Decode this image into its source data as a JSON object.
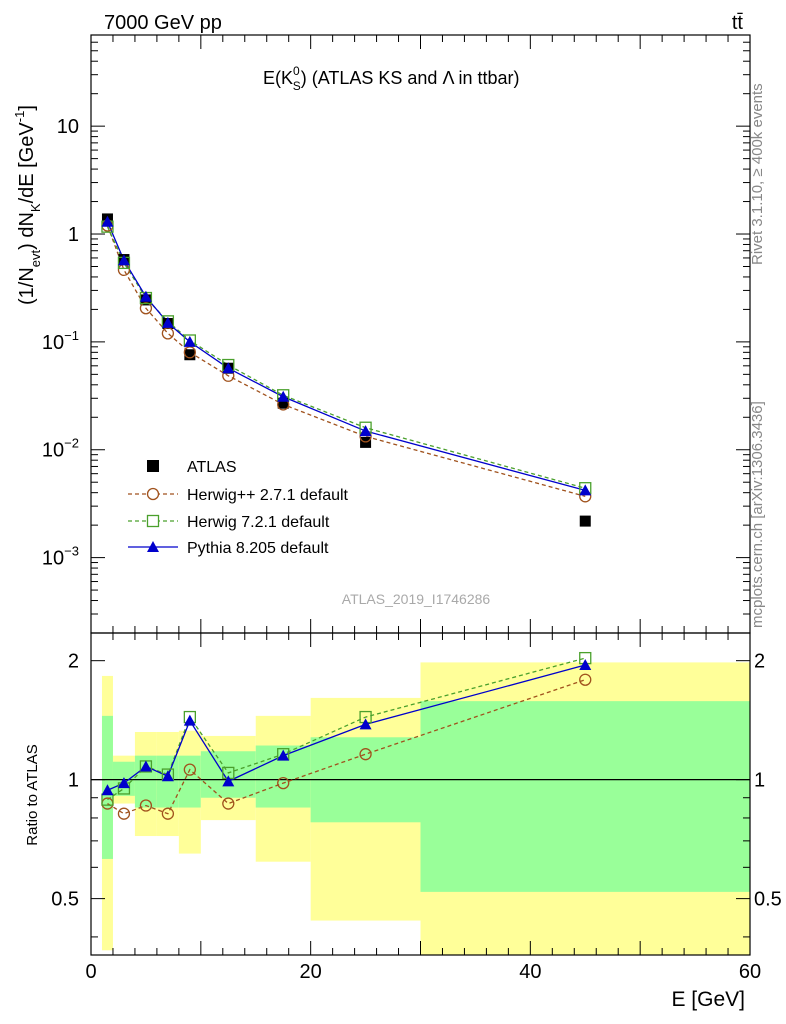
{
  "header": {
    "energy": "7000 GeV pp",
    "process": "tt̄"
  },
  "side_labels": {
    "rivet": "Rivet 3.1.10, ≥ 400k events",
    "mcplots": "mcplots.cern.ch [arXiv:1306.3436]"
  },
  "watermark": "ATLAS_2019_I1746286",
  "chart_data": [
    {
      "type": "line",
      "title": "E(K⁰S) (ATLAS KS and Λ in ttbar)",
      "title_parts": {
        "main": "E(K",
        "sup": "0",
        "sub": "S",
        "tail": ") (ATLAS KS and Λ in ttbar)"
      },
      "xlabel": "E [GeV]",
      "ylabel": "(1/Nevt) dNK/dE [GeV⁻¹]",
      "ylabel_parts": {
        "a": "(1/N",
        "sub1": "evt",
        "b": ") dN",
        "sub2": "K",
        "c": "/dE [GeV",
        "sup": "-1",
        "d": "]"
      },
      "xlim": [
        0,
        60
      ],
      "ylim": [
        0.0002,
        70
      ],
      "yscale": "log",
      "yticks": [
        {
          "value": 10,
          "base": "10",
          "exp": ""
        },
        {
          "value": 1,
          "base": "1",
          "exp": ""
        },
        {
          "value": 0.1,
          "base": "10",
          "exp": "−1"
        },
        {
          "value": 0.01,
          "base": "10",
          "exp": "−2"
        },
        {
          "value": 0.001,
          "base": "10",
          "exp": "−3"
        }
      ],
      "legend_position": "middle-left",
      "x": [
        1.5,
        3,
        5,
        7,
        9,
        12.5,
        17.5,
        25,
        45
      ],
      "series": [
        {
          "name": "ATLAS",
          "style": "data",
          "color": "#000000",
          "values": [
            1.38,
            0.58,
            0.245,
            0.148,
            0.076,
            0.057,
            0.027,
            0.0117,
            0.00218
          ]
        },
        {
          "name": "Herwig++ 2.7.1 default",
          "style": "open-circle-dashed",
          "color": "#a0521d",
          "values": [
            1.2,
            0.465,
            0.205,
            0.12,
            0.08,
            0.0485,
            0.0263,
            0.0133,
            0.0037
          ]
        },
        {
          "name": "Herwig 7.2.1 default",
          "style": "open-square-dashed",
          "color": "#4aa02c",
          "values": [
            1.17,
            0.54,
            0.255,
            0.155,
            0.103,
            0.061,
            0.032,
            0.016,
            0.0044
          ]
        },
        {
          "name": "Pythia 8.205 default",
          "style": "filled-triangle-solid",
          "color": "#0000cc",
          "values": [
            1.3,
            0.57,
            0.262,
            0.15,
            0.1,
            0.057,
            0.031,
            0.0149,
            0.0042
          ]
        }
      ]
    },
    {
      "type": "line",
      "title": "",
      "xlabel": "E [GeV]",
      "ylabel": "Ratio to ATLAS",
      "xlim": [
        0,
        60
      ],
      "ylim": [
        0.36,
        2.35
      ],
      "yscale": "log",
      "xticks": [
        0,
        20,
        40,
        60
      ],
      "yticks": [
        0.5,
        1,
        2
      ],
      "bands": [
        {
          "xmin": 1,
          "xmax": 2,
          "inner": [
            0.63,
            1.45
          ],
          "outer": [
            0.37,
            1.83
          ]
        },
        {
          "xmin": 2,
          "xmax": 4,
          "inner": [
            0.91,
            1.11
          ],
          "outer": [
            0.87,
            1.15
          ]
        },
        {
          "xmin": 4,
          "xmax": 6,
          "inner": [
            0.85,
            1.15
          ],
          "outer": [
            0.72,
            1.32
          ]
        },
        {
          "xmin": 6,
          "xmax": 8,
          "inner": [
            0.85,
            1.15
          ],
          "outer": [
            0.72,
            1.32
          ]
        },
        {
          "xmin": 8,
          "xmax": 10,
          "inner": [
            0.85,
            1.15
          ],
          "outer": [
            0.65,
            1.33
          ]
        },
        {
          "xmin": 10,
          "xmax": 15,
          "inner": [
            0.9,
            1.18
          ],
          "outer": [
            0.79,
            1.29
          ]
        },
        {
          "xmin": 15,
          "xmax": 20,
          "inner": [
            0.85,
            1.22
          ],
          "outer": [
            0.62,
            1.45
          ]
        },
        {
          "xmin": 20,
          "xmax": 30,
          "inner": [
            0.78,
            1.28
          ],
          "outer": [
            0.44,
            1.61
          ]
        },
        {
          "xmin": 30,
          "xmax": 60,
          "inner": [
            0.52,
            1.58
          ],
          "outer": [
            0.36,
            1.98
          ]
        }
      ],
      "band_colors": {
        "inner": "#99ff99",
        "outer": "#ffff99"
      },
      "x": [
        1.5,
        3,
        5,
        7,
        9,
        12.5,
        17.5,
        25,
        45
      ],
      "series": [
        {
          "name": "Herwig++ 2.7.1 default",
          "style": "open-circle-dashed",
          "color": "#a0521d",
          "values": [
            0.87,
            0.82,
            0.86,
            0.82,
            1.06,
            0.87,
            0.98,
            1.16,
            1.79
          ]
        },
        {
          "name": "Herwig 7.2.1 default",
          "style": "open-square-dashed",
          "color": "#4aa02c",
          "values": [
            0.89,
            0.95,
            1.08,
            1.03,
            1.44,
            1.04,
            1.16,
            1.44,
            2.03
          ]
        },
        {
          "name": "Pythia 8.205 default",
          "style": "filled-triangle-solid",
          "color": "#0000cc",
          "values": [
            0.94,
            0.98,
            1.08,
            1.02,
            1.41,
            0.99,
            1.15,
            1.38,
            1.95
          ]
        }
      ]
    }
  ]
}
